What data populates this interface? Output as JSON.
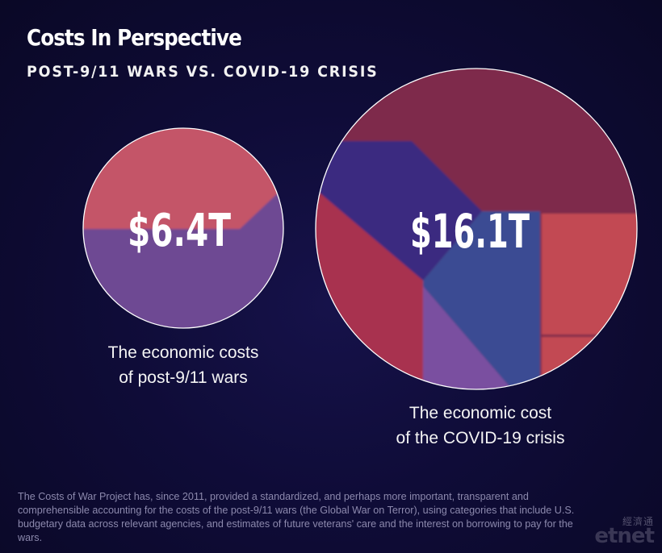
{
  "header": {
    "title": "Costs In Perspective",
    "subtitle": "POST-9/11 WARS VS. COVID-19 CRISIS"
  },
  "chart_data": {
    "type": "bubble",
    "title": "Costs In Perspective",
    "subtitle": "POST-9/11 WARS VS. COVID-19 CRISIS",
    "units": "trillion USD",
    "items": [
      {
        "label": "$6.4T",
        "value": 6.4,
        "caption_lines": [
          "The economic costs",
          "of post-9/11 wars"
        ]
      },
      {
        "label": "$16.1T",
        "value": 16.1,
        "caption_lines": [
          "The economic cost",
          "of the COVID-19 crisis"
        ]
      }
    ]
  },
  "footnote": "The Costs of War Project has, since 2011, provided a standardized, and perhaps more important, transparent and comprehensible accounting for the costs of the post-9/11 wars (the Global War on Terror), using categories that include U.S. budgetary data across relevant agencies, and estimates of future veterans' care and the interest on borrowing to pay for the wars.",
  "watermark": {
    "chinese": "經濟通",
    "latin": "etnet"
  },
  "colors": {
    "background": "#0f0c38",
    "wars_top": "#c45468",
    "wars_bottom": "#6e4a93",
    "covid_wine": "#7e2c4c",
    "covid_purple": "#3b2a80",
    "covid_rose": "#a8324f",
    "covid_blue": "#3a4b93",
    "covid_violet": "#7a4fa0",
    "covid_coral": "#c24a52",
    "outline": "#ffffff"
  }
}
